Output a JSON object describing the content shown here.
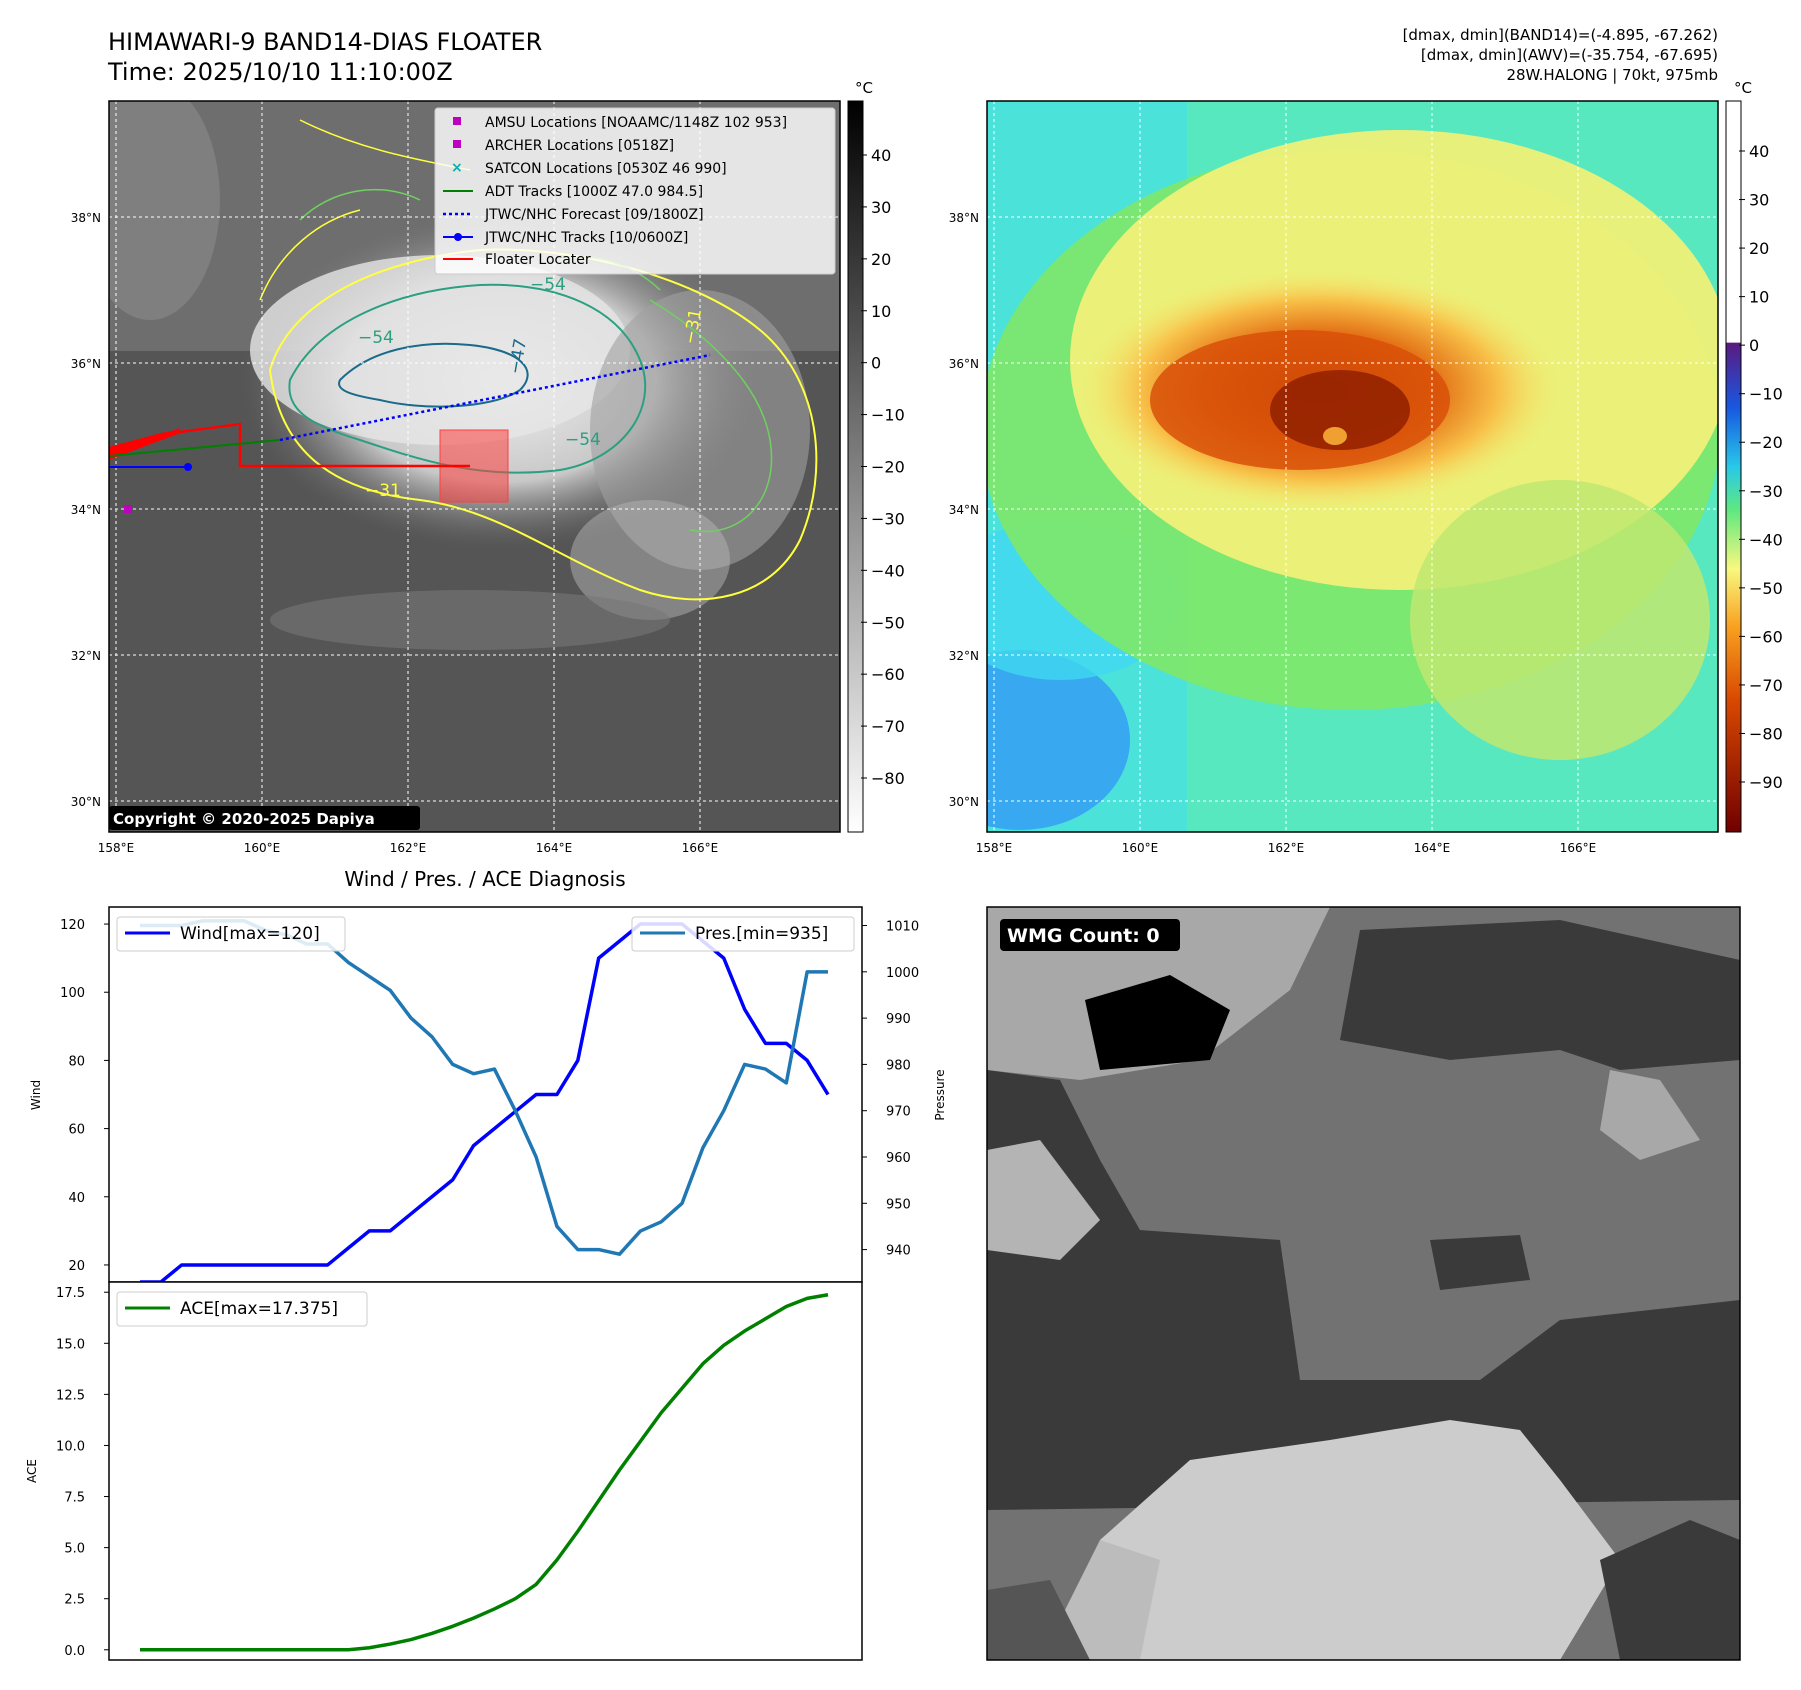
{
  "header": {
    "title_line1": "HIMAWARI-9 BAND14-DIAS FLOATER",
    "title_line2": "Time: 2025/10/10 11:10:00Z",
    "info_line1": "[dmax, dmin](BAND14)=(-4.895, -67.262)",
    "info_line2": "[dmax, dmin](AWV)=(-35.754, -67.695)",
    "info_line3": "28W.HALONG | 70kt, 975mb"
  },
  "map_ir": {
    "lat_labels": [
      "38°N",
      "36°N",
      "34°N",
      "32°N",
      "30°N"
    ],
    "lon_labels": [
      "158°E",
      "160°E",
      "162°E",
      "164°E",
      "166°E"
    ],
    "copyright": "Copyright © 2020-2025 Dapiya",
    "contour_labels": [
      "−54",
      "−54",
      "−54",
      "−31",
      "−31",
      "−47"
    ],
    "legend": [
      {
        "label": "AMSU Locations [NOAAMC/1148Z 102 953]",
        "color": "#c000c0",
        "marker": "square"
      },
      {
        "label": "ARCHER Locations [0518Z]",
        "color": "#c000c0",
        "marker": "square"
      },
      {
        "label": "SATCON Locations [0530Z 46 990]",
        "color": "#00b0b0",
        "marker": "x"
      },
      {
        "label": "ADT Tracks [1000Z 47.0 984.5]",
        "color": "#007f00",
        "marker": "line"
      },
      {
        "label": "JTWC/NHC Forecast [09/1800Z]",
        "color": "#0000ff",
        "marker": "dotted"
      },
      {
        "label": "JTWC/NHC Tracks [10/0600Z]",
        "color": "#0000ff",
        "marker": "line-dot"
      },
      {
        "label": "Floater Locater",
        "color": "#ff0000",
        "marker": "line"
      }
    ],
    "colorbar": {
      "unit": "°C",
      "ticks": [
        "40",
        "30",
        "20",
        "10",
        "0",
        "−10",
        "−20",
        "−30",
        "−40",
        "−50",
        "−60",
        "−70",
        "−80"
      ]
    }
  },
  "map_wv": {
    "lat_labels": [
      "38°N",
      "36°N",
      "34°N",
      "32°N",
      "30°N"
    ],
    "lon_labels": [
      "158°E",
      "160°E",
      "162°E",
      "164°E",
      "166°E"
    ],
    "colorbar": {
      "unit": "°C",
      "ticks": [
        "40",
        "30",
        "20",
        "10",
        "0",
        "−10",
        "−20",
        "−30",
        "−40",
        "−50",
        "−60",
        "−70",
        "−80",
        "−90"
      ]
    }
  },
  "wmg": {
    "label": "WMG Count: 0"
  },
  "chart_data": [
    {
      "type": "line",
      "title": "Wind / Pres. / ACE Diagnosis",
      "ylabel": "Wind",
      "y2label": "Pressure",
      "ylim": [
        15,
        125
      ],
      "y2lim": [
        933,
        1014
      ],
      "yticks": [
        20,
        40,
        60,
        80,
        100,
        120
      ],
      "y2ticks": [
        940,
        950,
        960,
        970,
        980,
        990,
        1000,
        1010
      ],
      "x": [
        0,
        1,
        2,
        3,
        4,
        5,
        6,
        7,
        8,
        9,
        10,
        11,
        12,
        13,
        14,
        15,
        16,
        17,
        18,
        19,
        20,
        21,
        22,
        23,
        24,
        25,
        26,
        27,
        28,
        29,
        30,
        31,
        32,
        33
      ],
      "series": [
        {
          "name": "Wind[max=120]",
          "color": "#0000ff",
          "axis": "left",
          "values": [
            15,
            15,
            20,
            20,
            20,
            20,
            20,
            20,
            20,
            20,
            25,
            30,
            30,
            35,
            40,
            45,
            55,
            60,
            65,
            70,
            70,
            80,
            110,
            115,
            120,
            120,
            120,
            115,
            110,
            95,
            85,
            85,
            80,
            70
          ]
        },
        {
          "name": "Pres.[min=935]",
          "color": "#1f77b4",
          "axis": "right",
          "values": [
            1010,
            1010,
            1010,
            1011,
            1011,
            1011,
            1009,
            1008,
            1006,
            1006,
            1002,
            999,
            996,
            990,
            986,
            980,
            978,
            979,
            970,
            960,
            945,
            940,
            940,
            939,
            944,
            946,
            950,
            962,
            970,
            980,
            979,
            976,
            1000,
            1000
          ]
        }
      ]
    },
    {
      "type": "line",
      "ylabel": "ACE",
      "ylim": [
        -0.5,
        18
      ],
      "yticks": [
        "0.0",
        "2.5",
        "5.0",
        "7.5",
        "10.0",
        "12.5",
        "15.0",
        "17.5"
      ],
      "x": [
        0,
        1,
        2,
        3,
        4,
        5,
        6,
        7,
        8,
        9,
        10,
        11,
        12,
        13,
        14,
        15,
        16,
        17,
        18,
        19,
        20,
        21,
        22,
        23,
        24,
        25,
        26,
        27,
        28,
        29,
        30,
        31,
        32,
        33
      ],
      "series": [
        {
          "name": "ACE[max=17.375]",
          "color": "#008000",
          "values": [
            0,
            0,
            0,
            0,
            0,
            0,
            0,
            0,
            0,
            0,
            0,
            0.1,
            0.28,
            0.5,
            0.8,
            1.15,
            1.55,
            2.0,
            2.5,
            3.2,
            4.4,
            5.8,
            7.3,
            8.8,
            10.2,
            11.6,
            12.8,
            14.0,
            14.9,
            15.6,
            16.2,
            16.8,
            17.2,
            17.375
          ]
        }
      ]
    }
  ]
}
